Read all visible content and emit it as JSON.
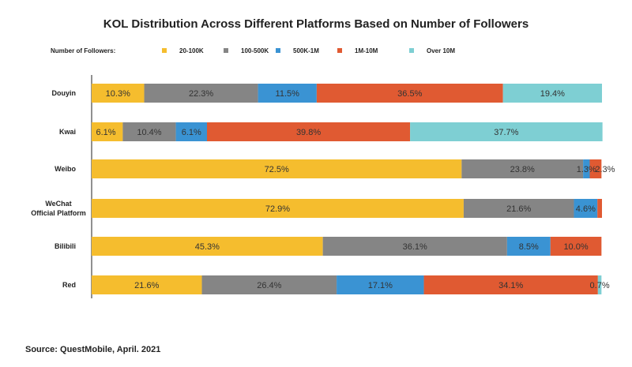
{
  "chart_data": {
    "type": "bar",
    "orientation": "horizontal",
    "stacked": true,
    "title": "KOL Distribution Across Different Platforms Based on Number of Followers",
    "legend_title": "Number of Followers:",
    "legend_placement": "top",
    "categories": [
      [
        "Douyin"
      ],
      [
        "Kwai"
      ],
      [
        "Weibo"
      ],
      [
        "WeChat",
        "Official Platform"
      ],
      [
        "Bilibili"
      ],
      [
        "Red"
      ]
    ],
    "series": [
      {
        "name": "20-100K",
        "color": "#f5bd2e",
        "values": [
          10.3,
          6.1,
          72.5,
          72.9,
          45.3,
          21.6
        ],
        "labels": [
          "10.3%",
          "6.1%",
          "72.5%",
          "72.9%",
          "45.3%",
          "21.6%"
        ]
      },
      {
        "name": "100-500K",
        "color": "#858585",
        "values": [
          22.3,
          10.4,
          23.8,
          21.6,
          36.1,
          26.4
        ],
        "labels": [
          "22.3%",
          "10.4%",
          "23.8%",
          "21.6%",
          "36.1%",
          "26.4%"
        ]
      },
      {
        "name": "500K-1M",
        "color": "#3a93d3",
        "values": [
          11.5,
          6.1,
          1.3,
          4.6,
          8.5,
          17.1
        ],
        "labels": [
          "11.5%",
          "6.1%",
          "1.3%",
          "4.6%",
          "8.5%",
          "17.1%"
        ]
      },
      {
        "name": "1M-10M",
        "color": "#e05a32",
        "values": [
          36.5,
          39.8,
          2.3,
          0.9,
          10.0,
          34.1
        ],
        "labels": [
          "36.5%",
          "39.8%",
          "2.3%",
          "",
          "10.0%",
          "34.1%"
        ]
      },
      {
        "name": "Over 10M",
        "color": "#7ecfd3",
        "values": [
          19.4,
          37.7,
          0.0,
          0.0,
          0.0,
          0.7
        ],
        "labels": [
          "19.4%",
          "37.7%",
          "",
          "",
          "",
          "0.7%"
        ]
      }
    ],
    "xlim": [
      0,
      100
    ],
    "grid": false,
    "source": "Source: QuestMobile, April. 2021"
  }
}
